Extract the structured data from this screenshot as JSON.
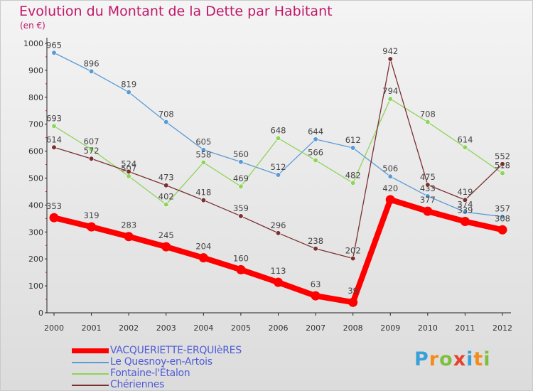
{
  "title": "Evolution du Montant de la Dette par Habitant",
  "subtitle": "(en €)",
  "logo": {
    "text": "Proxiti",
    "colors": [
      "#3aa0d8",
      "#f28c1c",
      "#7fbf3f",
      "#e8412b",
      "#3aa0d8",
      "#f28c1c",
      "#7fbf3f"
    ]
  },
  "chart_data": {
    "type": "line",
    "categories": [
      "2000",
      "2001",
      "2002",
      "2003",
      "2004",
      "2005",
      "2006",
      "2007",
      "2008",
      "2009",
      "2010",
      "2011",
      "2012"
    ],
    "ylim": [
      0,
      1000
    ],
    "yticks": [
      "0",
      "100",
      "200",
      "300",
      "400",
      "500",
      "600",
      "700",
      "800",
      "900",
      "1000"
    ],
    "grid": false,
    "legend_position": "bottom-left",
    "series": [
      {
        "name": "Le Quesnoy-en-Artois",
        "color": "#5a9bd5",
        "values": [
          965,
          896,
          819,
          708,
          605,
          560,
          512,
          644,
          612,
          506,
          433,
          374,
          357
        ],
        "labels": [
          "965",
          "896",
          "819",
          "708",
          "605",
          "560",
          "512",
          "644",
          "612",
          "506",
          "433",
          "374",
          "357"
        ]
      },
      {
        "name": "Fontaine-l'Étalon",
        "color": "#8fd45a",
        "values": [
          693,
          607,
          507,
          402,
          558,
          469,
          648,
          566,
          482,
          794,
          708,
          614,
          518
        ],
        "labels": [
          "693",
          "607",
          "507",
          "402",
          "558",
          "469",
          "648",
          "566",
          "482",
          "794",
          "708",
          "614",
          "518"
        ]
      },
      {
        "name": "Chériennes",
        "color": "#7a3030",
        "values": [
          614,
          572,
          524,
          473,
          418,
          359,
          296,
          238,
          202,
          942,
          475,
          419,
          552
        ],
        "labels": [
          "614",
          "572",
          "524",
          "473",
          "418",
          "359",
          "296",
          "238",
          "202",
          "942",
          "475",
          "419",
          "552"
        ]
      },
      {
        "name": "VACQUERIETTE-ERQUIèRES",
        "color": "#ff0000",
        "values": [
          353,
          319,
          283,
          245,
          204,
          160,
          113,
          63,
          39,
          420,
          377,
          339,
          308
        ],
        "labels": [
          "353",
          "319",
          "283",
          "245",
          "204",
          "160",
          "113",
          "63",
          "39",
          "420",
          "377",
          "339",
          "308"
        ]
      }
    ],
    "legend": [
      {
        "name": "VACQUERIETTE-ERQUIèRES",
        "color": "#ff0000"
      },
      {
        "name": "Le Quesnoy-en-Artois",
        "color": "#5a9bd5"
      },
      {
        "name": "Fontaine-l'Étalon",
        "color": "#8fd45a"
      },
      {
        "name": "Chériennes",
        "color": "#7a3030"
      }
    ]
  }
}
